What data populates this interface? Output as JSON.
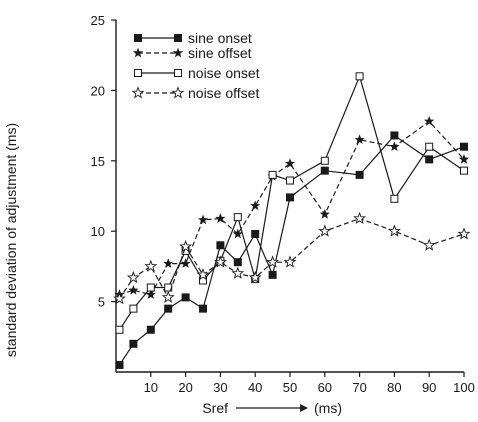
{
  "chart_data": {
    "type": "line",
    "xlabel": "Sref",
    "xunit": "(ms)",
    "ylabel": "standard deviation of adjustment (ms)",
    "xlim": [
      0,
      100
    ],
    "ylim": [
      0,
      25
    ],
    "xticks": [
      10,
      20,
      30,
      40,
      50,
      60,
      70,
      80,
      90,
      100
    ],
    "yticks": [
      5,
      10,
      15,
      20,
      25
    ],
    "grid": false,
    "legend_position": "top-left",
    "series": [
      {
        "name": "sine onset",
        "marker": "filled-square",
        "line": "solid",
        "x": [
          1,
          5,
          10,
          15,
          20,
          25,
          30,
          35,
          40,
          45,
          50,
          60,
          70,
          80,
          90,
          100
        ],
        "y": [
          0.5,
          2.0,
          3.0,
          4.5,
          5.3,
          4.5,
          9.0,
          7.8,
          9.8,
          6.9,
          12.4,
          14.3,
          14.0,
          16.8,
          15.1,
          16.0
        ]
      },
      {
        "name": "sine offset",
        "marker": "filled-star",
        "line": "dashed",
        "x": [
          1,
          5,
          10,
          15,
          20,
          25,
          30,
          35,
          40,
          45,
          50,
          60,
          70,
          80,
          90,
          100
        ],
        "y": [
          5.5,
          5.8,
          5.5,
          7.7,
          7.7,
          10.8,
          10.9,
          9.8,
          11.8,
          13.9,
          14.8,
          11.2,
          16.5,
          16.0,
          17.8,
          15.1
        ]
      },
      {
        "name": "noise onset",
        "marker": "open-square",
        "line": "solid",
        "x": [
          1,
          5,
          10,
          15,
          20,
          25,
          30,
          35,
          40,
          45,
          50,
          60,
          70,
          80,
          90,
          100
        ],
        "y": [
          3.0,
          4.5,
          6.0,
          6.0,
          8.6,
          6.5,
          7.9,
          11.0,
          6.6,
          14.0,
          13.6,
          15.0,
          21.0,
          12.3,
          16.0,
          14.3
        ]
      },
      {
        "name": "noise offset",
        "marker": "open-star",
        "line": "dashed",
        "x": [
          1,
          5,
          10,
          15,
          20,
          25,
          30,
          35,
          40,
          45,
          50,
          60,
          70,
          80,
          90,
          100
        ],
        "y": [
          5.2,
          6.7,
          7.5,
          5.3,
          8.9,
          6.9,
          7.8,
          7.0,
          6.7,
          7.8,
          7.8,
          10.0,
          10.9,
          10.0,
          9.0,
          9.8
        ]
      }
    ]
  },
  "colors": {
    "ink": "#1a1a1a",
    "background": "#ffffff"
  }
}
